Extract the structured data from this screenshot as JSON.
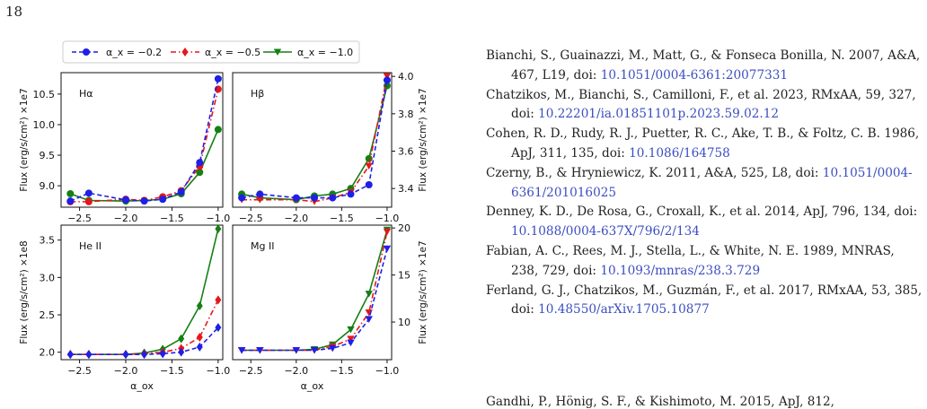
{
  "page": {
    "number": "18"
  },
  "figure": {
    "legend": [
      "α_x = −0.2",
      "α_x = −0.5",
      "α_x = −1.0"
    ],
    "colors": [
      "#1f1fe6",
      "#e6161b",
      "#138013"
    ]
  },
  "chart_data": [
    {
      "type": "line",
      "panel": "Hα",
      "x": [
        -2.6,
        -2.4,
        -2.0,
        -1.8,
        -1.6,
        -1.4,
        -1.2,
        -1.0
      ],
      "series": [
        {
          "name": "α_x = −0.2",
          "values": [
            8.75,
            8.88,
            8.77,
            8.75,
            8.78,
            8.9,
            9.38,
            10.75
          ]
        },
        {
          "name": "α_x = −0.5",
          "values": [
            8.74,
            8.74,
            8.78,
            8.76,
            8.82,
            8.92,
            9.32,
            10.58
          ]
        },
        {
          "name": "α_x = −1.0",
          "values": [
            8.87,
            8.76,
            8.75,
            8.76,
            8.78,
            8.87,
            9.22,
            9.92
          ]
        }
      ],
      "ylabel": "Flux (erg/s/cm²) ×1e7",
      "ylim": [
        8.65,
        10.85
      ],
      "xlim": [
        -2.7,
        -0.95
      ],
      "yticks": [
        "9.0",
        "9.5",
        "10.0",
        "10.5"
      ],
      "xticks": [
        "−2.5",
        "−2.0",
        "−1.5",
        "−1.0"
      ]
    },
    {
      "type": "line",
      "panel": "Hβ",
      "x": [
        -2.6,
        -2.4,
        -2.0,
        -1.8,
        -1.6,
        -1.4,
        -1.2,
        -1.0
      ],
      "series": [
        {
          "name": "α_x = −0.2",
          "values": [
            3.35,
            3.37,
            3.35,
            3.35,
            3.35,
            3.37,
            3.42,
            3.98
          ]
        },
        {
          "name": "α_x = −0.5",
          "values": [
            3.34,
            3.34,
            3.34,
            3.33,
            3.35,
            3.38,
            3.52,
            4.0
          ]
        },
        {
          "name": "α_x = −1.0",
          "values": [
            3.37,
            3.35,
            3.34,
            3.36,
            3.37,
            3.4,
            3.56,
            3.95
          ]
        }
      ],
      "ylabel": "Flux (erg/s/cm²) ×1e7",
      "ylim": [
        3.3,
        4.02
      ],
      "xlim": [
        -2.7,
        -0.95
      ],
      "yticks": [
        "3.4",
        "3.6",
        "3.8",
        "4.0"
      ],
      "xticks": [
        "−2.5",
        "−2.0",
        "−1.5",
        "−1.0"
      ]
    },
    {
      "type": "line",
      "panel": "He II",
      "x": [
        -2.6,
        -2.4,
        -2.0,
        -1.8,
        -1.6,
        -1.4,
        -1.2,
        -1.0
      ],
      "series": [
        {
          "name": "α_x = −0.2",
          "values": [
            1.97,
            1.97,
            1.97,
            1.97,
            1.98,
            2.0,
            2.07,
            2.33
          ]
        },
        {
          "name": "α_x = −0.5",
          "values": [
            1.97,
            1.97,
            1.97,
            1.98,
            2.0,
            2.05,
            2.2,
            2.7
          ]
        },
        {
          "name": "α_x = −1.0",
          "values": [
            1.97,
            1.97,
            1.97,
            1.99,
            2.04,
            2.18,
            2.62,
            3.65
          ]
        }
      ],
      "ylabel": "Flux (erg/s/cm²) ×1e8",
      "ylim": [
        1.9,
        3.7
      ],
      "xlim": [
        -2.7,
        -0.95
      ],
      "yticks": [
        "2.0",
        "2.5",
        "3.0",
        "3.5"
      ],
      "xticks": [
        "−2.5",
        "−2.0",
        "−1.5",
        "−1.0"
      ],
      "xlabel": "α_ox"
    },
    {
      "type": "line",
      "panel": "Mg II",
      "x": [
        -2.6,
        -2.4,
        -2.0,
        -1.8,
        -1.6,
        -1.4,
        -1.2,
        -1.0
      ],
      "series": [
        {
          "name": "α_x = −0.2",
          "values": [
            7.0,
            7.0,
            7.0,
            7.0,
            7.2,
            7.8,
            10.3,
            17.8
          ]
        },
        {
          "name": "α_x = −0.5",
          "values": [
            7.0,
            7.0,
            7.0,
            7.0,
            7.4,
            8.2,
            11.0,
            19.6
          ]
        },
        {
          "name": "α_x = −1.0",
          "values": [
            7.0,
            7.0,
            7.0,
            7.1,
            7.6,
            9.2,
            13.0,
            19.8
          ]
        }
      ],
      "ylabel": "Flux (erg/s/cm²) ×1e7",
      "ylim": [
        6.0,
        20.3
      ],
      "xlim": [
        -2.7,
        -0.95
      ],
      "yticks": [
        "10",
        "15",
        "20"
      ],
      "xticks": [
        "−2.5",
        "−2.0",
        "−1.5",
        "−1.0"
      ],
      "xlabel": "α_ox"
    }
  ],
  "references": [
    {
      "text": "Bianchi, S., Guainazzi, M., Matt, G., & Fonseca Bonilla, N. 2007, A&A, 467, L19, doi: ",
      "doi": "10.1051/0004-6361:20077331"
    },
    {
      "text": "Chatzikos, M., Bianchi, S., Camilloni, F., et al. 2023, RMxAA, 59, 327, doi: ",
      "doi": "10.22201/ia.01851101p.2023.59.02.12"
    },
    {
      "text": "Cohen, R. D., Rudy, R. J., Puetter, R. C., Ake, T. B., & Foltz, C. B. 1986, ApJ, 311, 135, doi: ",
      "doi": "10.1086/164758"
    },
    {
      "text": "Czerny, B., & Hryniewicz, K. 2011, A&A, 525, L8, doi: ",
      "doi": "10.1051/0004-6361/201016025"
    },
    {
      "text": "Denney, K. D., De Rosa, G., Croxall, K., et al. 2014, ApJ, 796, 134, doi: ",
      "doi": "10.1088/0004-637X/796/2/134"
    },
    {
      "text": "Fabian, A. C., Rees, M. J., Stella, L., & White, N. E. 1989, MNRAS, 238, 729, doi: ",
      "doi": "10.1093/mnras/238.3.729"
    },
    {
      "text": "Ferland, G. J., Chatzikos, M., Guzmán, F., et al. 2017, RMxAA, 53, 385, doi: ",
      "doi": "10.48550/arXiv.1705.10877"
    }
  ],
  "truncated_line": "Gandhi, P., Hönig, S. F., & Kishimoto, M. 2015, ApJ, 812,"
}
